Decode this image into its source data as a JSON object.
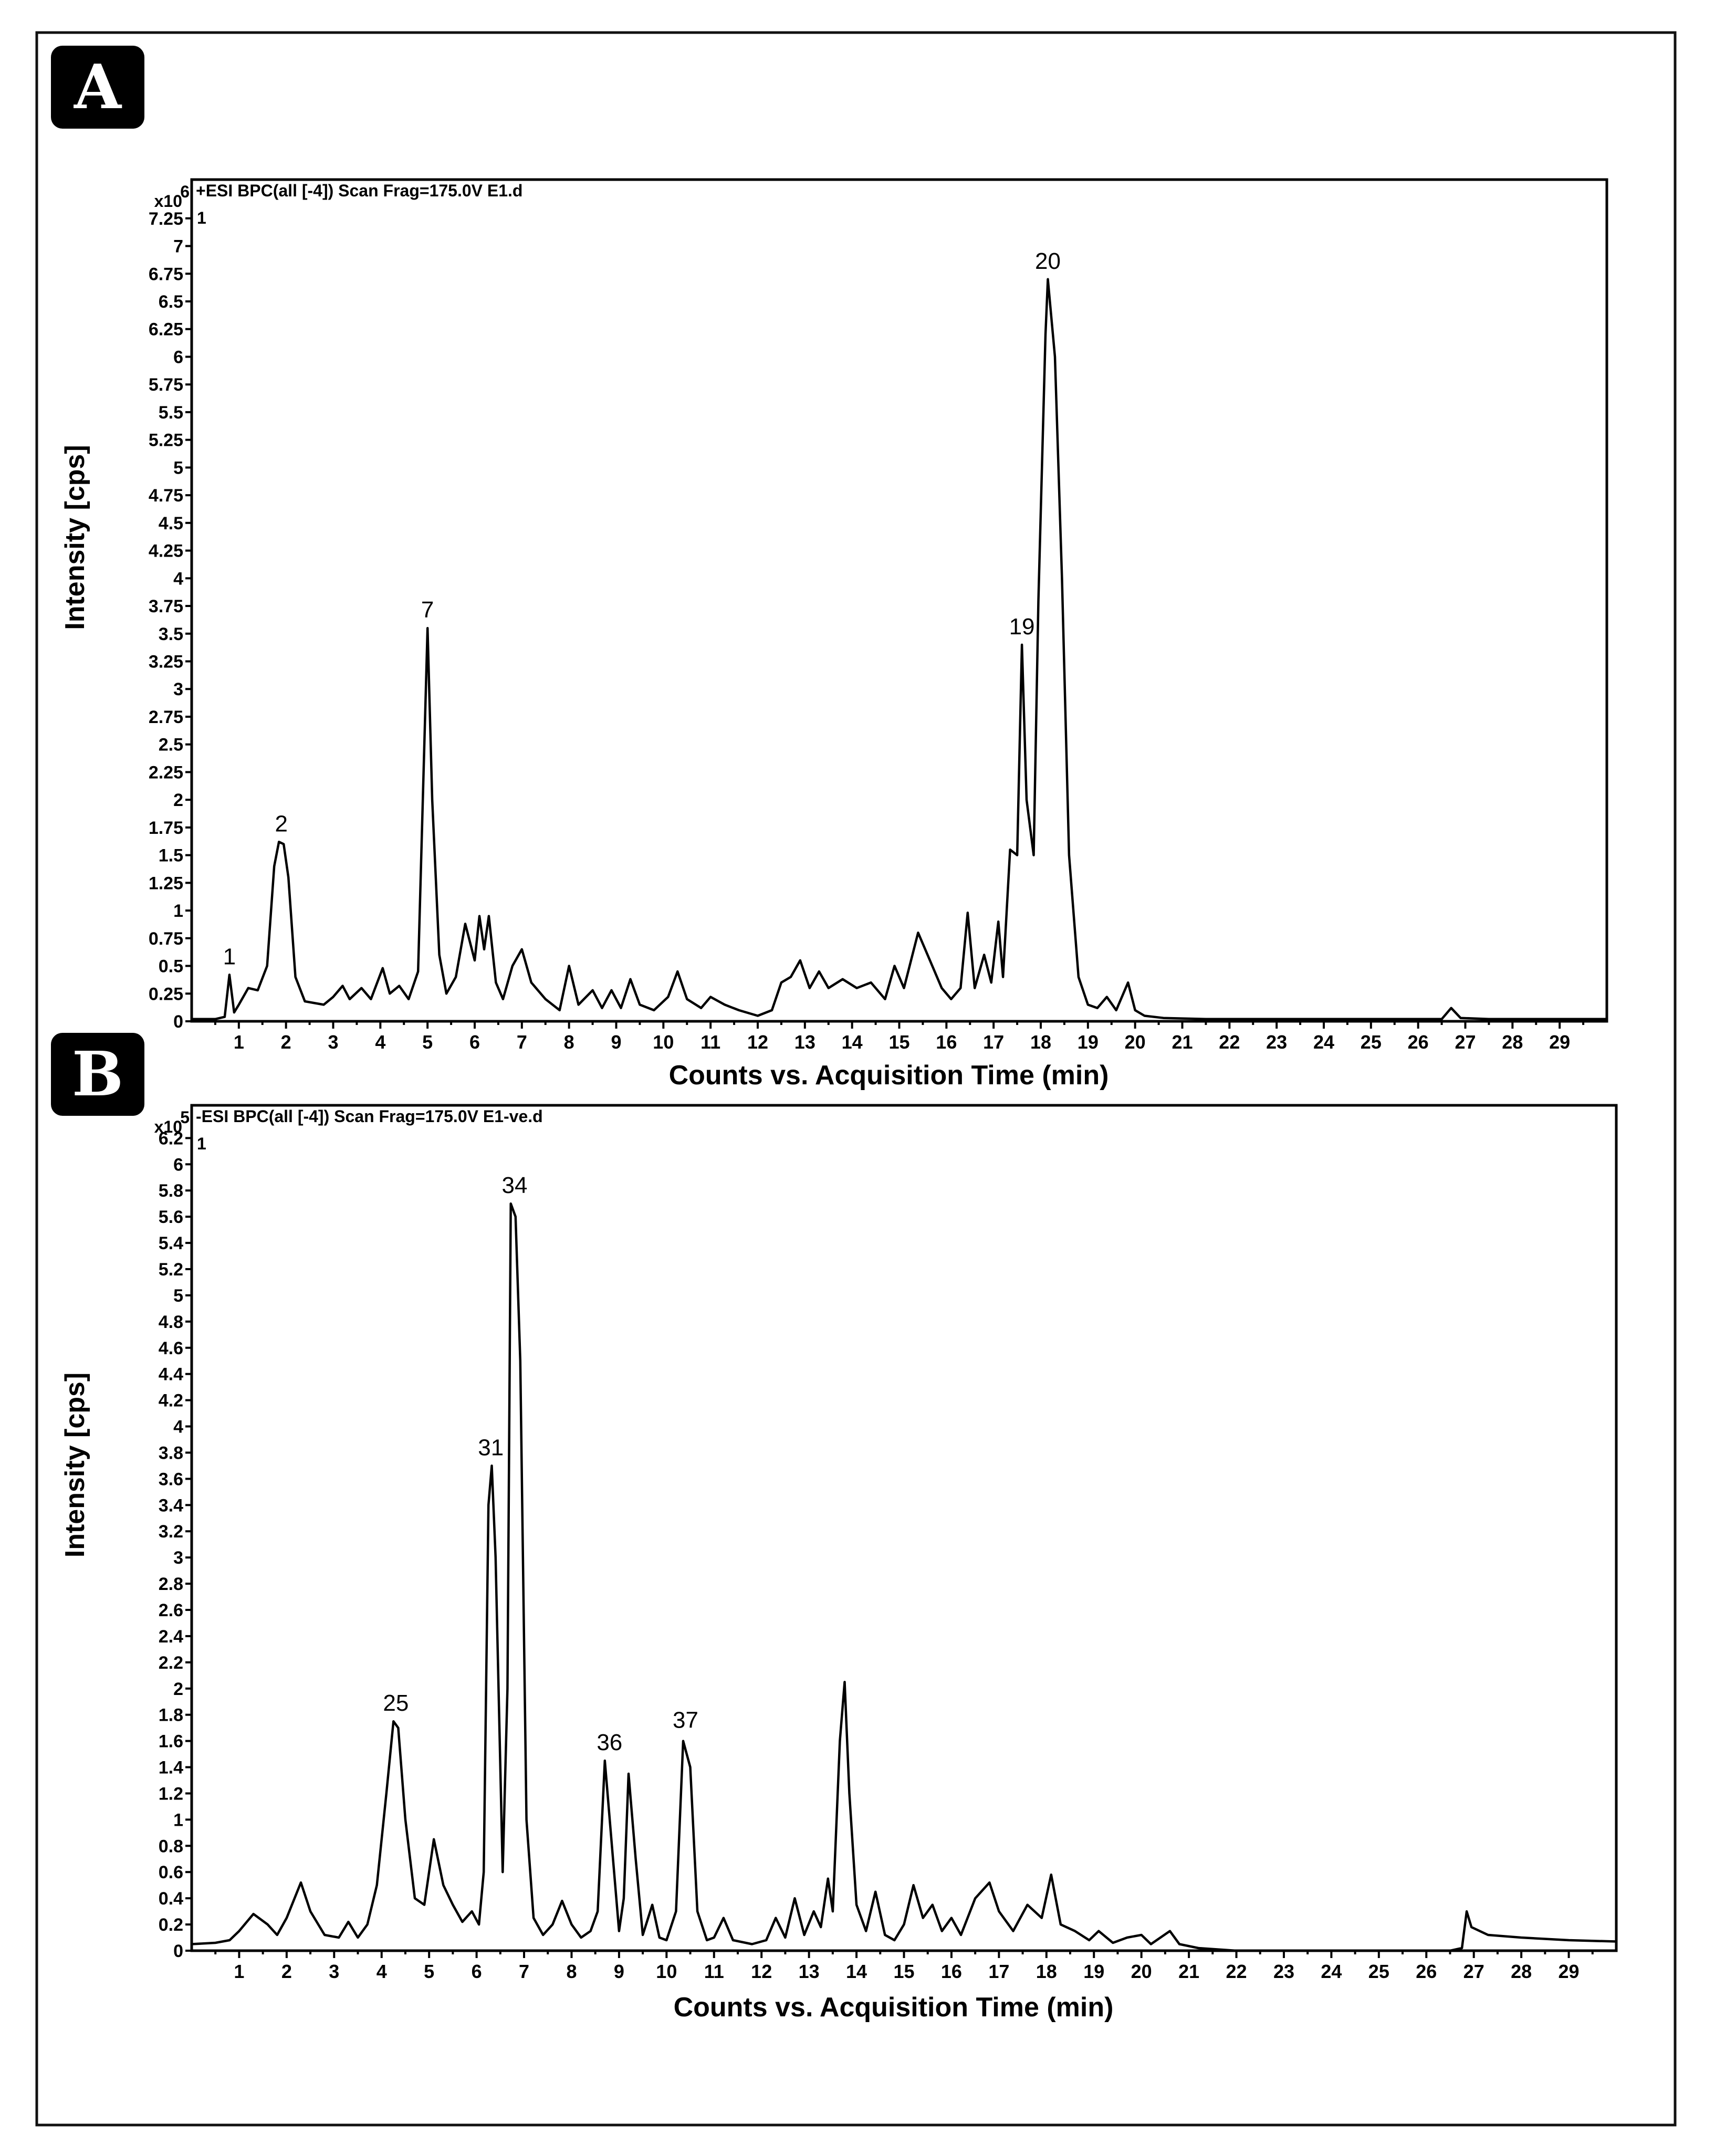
{
  "chart_data": [
    {
      "type": "line",
      "panel": "A",
      "header": "+ESI BPC(all [-4]) Scan Frag=175.0V E1.d",
      "multiplier_label": "x10",
      "multiplier_exp": "6",
      "corner_mark": "1",
      "ylabel": "Intensity [cps]",
      "xlabel": "Counts vs. Acquisition Time (min)",
      "xlim": [
        0.0,
        30.0
      ],
      "ylim": [
        0,
        7.6
      ],
      "xticks": [
        1,
        2,
        3,
        4,
        5,
        6,
        7,
        8,
        9,
        10,
        11,
        12,
        13,
        14,
        15,
        16,
        17,
        18,
        19,
        20,
        21,
        22,
        23,
        24,
        25,
        26,
        27,
        28,
        29
      ],
      "xtick_labels": [
        "1",
        "2",
        "3",
        "4",
        "5",
        "6",
        "7",
        "8",
        "9",
        "10",
        "11",
        "12",
        "13",
        "14",
        "15",
        "16",
        "17",
        "18",
        "19",
        "20",
        "21",
        "22",
        "23",
        "24",
        "25",
        "26",
        "27",
        "28",
        "29"
      ],
      "yticks": [
        0,
        0.25,
        0.5,
        0.75,
        1,
        1.25,
        1.5,
        1.75,
        2,
        2.25,
        2.5,
        2.75,
        3,
        3.25,
        3.5,
        3.75,
        4,
        4.25,
        4.5,
        4.75,
        5,
        5.25,
        5.5,
        5.75,
        6,
        6.25,
        6.5,
        6.75,
        7,
        7.25
      ],
      "ytick_labels": [
        "0",
        "0.25",
        "0.5",
        "0.75",
        "1",
        "1.25",
        "1.5",
        "1.75",
        "2",
        "2.25",
        "2.5",
        "2.75",
        "3",
        "3.25",
        "3.5",
        "3.75",
        "4",
        "4.25",
        "4.5",
        "4.75",
        "5",
        "5.25",
        "5.5",
        "5.75",
        "6",
        "6.25",
        "6.5",
        "6.75",
        "7",
        "7.25"
      ],
      "peaks": [
        {
          "label": "1",
          "x": 0.8,
          "y": 0.42
        },
        {
          "label": "2",
          "x": 1.9,
          "y": 1.62
        },
        {
          "label": "7",
          "x": 5.0,
          "y": 3.55
        },
        {
          "label": "19",
          "x": 17.6,
          "y": 3.4
        },
        {
          "label": "20",
          "x": 18.15,
          "y": 6.7
        }
      ],
      "trace": [
        [
          0.0,
          0.02
        ],
        [
          0.5,
          0.02
        ],
        [
          0.7,
          0.04
        ],
        [
          0.8,
          0.42
        ],
        [
          0.9,
          0.08
        ],
        [
          1.0,
          0.15
        ],
        [
          1.2,
          0.3
        ],
        [
          1.4,
          0.28
        ],
        [
          1.6,
          0.5
        ],
        [
          1.75,
          1.4
        ],
        [
          1.85,
          1.62
        ],
        [
          1.95,
          1.6
        ],
        [
          2.05,
          1.3
        ],
        [
          2.2,
          0.4
        ],
        [
          2.4,
          0.18
        ],
        [
          2.8,
          0.15
        ],
        [
          3.0,
          0.22
        ],
        [
          3.2,
          0.32
        ],
        [
          3.35,
          0.2
        ],
        [
          3.6,
          0.3
        ],
        [
          3.8,
          0.2
        ],
        [
          4.05,
          0.48
        ],
        [
          4.2,
          0.25
        ],
        [
          4.4,
          0.32
        ],
        [
          4.6,
          0.2
        ],
        [
          4.8,
          0.45
        ],
        [
          4.9,
          2.0
        ],
        [
          5.0,
          3.55
        ],
        [
          5.1,
          2.0
        ],
        [
          5.25,
          0.6
        ],
        [
          5.4,
          0.25
        ],
        [
          5.6,
          0.4
        ],
        [
          5.8,
          0.88
        ],
        [
          6.0,
          0.55
        ],
        [
          6.1,
          0.95
        ],
        [
          6.2,
          0.65
        ],
        [
          6.3,
          0.95
        ],
        [
          6.45,
          0.35
        ],
        [
          6.6,
          0.2
        ],
        [
          6.8,
          0.5
        ],
        [
          7.0,
          0.65
        ],
        [
          7.2,
          0.35
        ],
        [
          7.5,
          0.2
        ],
        [
          7.8,
          0.1
        ],
        [
          8.0,
          0.5
        ],
        [
          8.2,
          0.15
        ],
        [
          8.5,
          0.28
        ],
        [
          8.7,
          0.12
        ],
        [
          8.9,
          0.28
        ],
        [
          9.1,
          0.12
        ],
        [
          9.3,
          0.38
        ],
        [
          9.5,
          0.15
        ],
        [
          9.8,
          0.1
        ],
        [
          10.1,
          0.22
        ],
        [
          10.3,
          0.45
        ],
        [
          10.5,
          0.2
        ],
        [
          10.8,
          0.12
        ],
        [
          11.0,
          0.22
        ],
        [
          11.3,
          0.15
        ],
        [
          11.6,
          0.1
        ],
        [
          12.0,
          0.05
        ],
        [
          12.3,
          0.1
        ],
        [
          12.5,
          0.35
        ],
        [
          12.7,
          0.4
        ],
        [
          12.9,
          0.55
        ],
        [
          13.1,
          0.3
        ],
        [
          13.3,
          0.45
        ],
        [
          13.5,
          0.3
        ],
        [
          13.8,
          0.38
        ],
        [
          14.1,
          0.3
        ],
        [
          14.4,
          0.35
        ],
        [
          14.7,
          0.2
        ],
        [
          14.9,
          0.5
        ],
        [
          15.1,
          0.3
        ],
        [
          15.4,
          0.8
        ],
        [
          15.6,
          0.6
        ],
        [
          15.9,
          0.3
        ],
        [
          16.1,
          0.2
        ],
        [
          16.3,
          0.3
        ],
        [
          16.45,
          0.98
        ],
        [
          16.6,
          0.3
        ],
        [
          16.8,
          0.6
        ],
        [
          16.95,
          0.35
        ],
        [
          17.1,
          0.9
        ],
        [
          17.2,
          0.4
        ],
        [
          17.35,
          1.55
        ],
        [
          17.5,
          1.5
        ],
        [
          17.6,
          3.4
        ],
        [
          17.7,
          2.0
        ],
        [
          17.85,
          1.5
        ],
        [
          17.95,
          3.8
        ],
        [
          18.1,
          6.2
        ],
        [
          18.15,
          6.7
        ],
        [
          18.3,
          6.0
        ],
        [
          18.45,
          4.0
        ],
        [
          18.6,
          1.5
        ],
        [
          18.8,
          0.4
        ],
        [
          19.0,
          0.15
        ],
        [
          19.2,
          0.12
        ],
        [
          19.4,
          0.22
        ],
        [
          19.6,
          0.1
        ],
        [
          19.85,
          0.35
        ],
        [
          20.0,
          0.1
        ],
        [
          20.2,
          0.05
        ],
        [
          20.6,
          0.03
        ],
        [
          21.5,
          0.02
        ],
        [
          26.5,
          0.02
        ],
        [
          26.7,
          0.12
        ],
        [
          26.9,
          0.03
        ],
        [
          27.5,
          0.02
        ],
        [
          30.0,
          0.02
        ]
      ]
    },
    {
      "type": "line",
      "panel": "B",
      "header": "-ESI BPC(all [-4]) Scan Frag=175.0V E1-ve.d",
      "multiplier_label": "x10",
      "multiplier_exp": "5",
      "corner_mark": "1",
      "ylabel": "Intensity [cps]",
      "xlabel": "Counts vs. Acquisition Time (min)",
      "xlim": [
        0.0,
        30.0
      ],
      "ylim": [
        0,
        6.45
      ],
      "xticks": [
        1,
        2,
        3,
        4,
        5,
        6,
        7,
        8,
        9,
        10,
        11,
        12,
        13,
        14,
        15,
        16,
        17,
        18,
        19,
        20,
        21,
        22,
        23,
        24,
        25,
        26,
        27,
        28,
        29
      ],
      "xtick_labels": [
        "1",
        "2",
        "3",
        "4",
        "5",
        "6",
        "7",
        "8",
        "9",
        "10",
        "11",
        "12",
        "13",
        "14",
        "15",
        "16",
        "17",
        "18",
        "19",
        "20",
        "21",
        "22",
        "23",
        "24",
        "25",
        "26",
        "27",
        "28",
        "29"
      ],
      "yticks": [
        0,
        0.2,
        0.4,
        0.6,
        0.8,
        1,
        1.2,
        1.4,
        1.6,
        1.8,
        2,
        2.2,
        2.4,
        2.6,
        2.8,
        3,
        3.2,
        3.4,
        3.6,
        3.8,
        4,
        4.2,
        4.4,
        4.6,
        4.8,
        5,
        5.2,
        5.4,
        5.6,
        5.8,
        6,
        6.2
      ],
      "ytick_labels": [
        "0",
        "0.2",
        "0.4",
        "0.6",
        "0.8",
        "1",
        "1.2",
        "1.4",
        "1.6",
        "1.8",
        "2",
        "2.2",
        "2.4",
        "2.6",
        "2.8",
        "3",
        "3.2",
        "3.4",
        "3.6",
        "3.8",
        "4",
        "4.2",
        "4.4",
        "4.6",
        "4.8",
        "5",
        "5.2",
        "5.4",
        "5.6",
        "5.8",
        "6",
        "6.2"
      ],
      "peaks": [
        {
          "label": "25",
          "x": 4.3,
          "y": 1.75
        },
        {
          "label": "31",
          "x": 6.3,
          "y": 3.7
        },
        {
          "label": "34",
          "x": 6.8,
          "y": 5.7
        },
        {
          "label": "36",
          "x": 8.8,
          "y": 1.45
        },
        {
          "label": "37",
          "x": 10.4,
          "y": 1.62
        }
      ],
      "trace": [
        [
          0.0,
          0.05
        ],
        [
          0.5,
          0.06
        ],
        [
          0.8,
          0.08
        ],
        [
          1.0,
          0.15
        ],
        [
          1.3,
          0.28
        ],
        [
          1.6,
          0.2
        ],
        [
          1.8,
          0.12
        ],
        [
          2.0,
          0.25
        ],
        [
          2.3,
          0.52
        ],
        [
          2.5,
          0.3
        ],
        [
          2.8,
          0.12
        ],
        [
          3.1,
          0.1
        ],
        [
          3.3,
          0.22
        ],
        [
          3.5,
          0.1
        ],
        [
          3.7,
          0.2
        ],
        [
          3.9,
          0.5
        ],
        [
          4.1,
          1.2
        ],
        [
          4.25,
          1.75
        ],
        [
          4.35,
          1.7
        ],
        [
          4.5,
          1.0
        ],
        [
          4.7,
          0.4
        ],
        [
          4.9,
          0.35
        ],
        [
          5.1,
          0.85
        ],
        [
          5.3,
          0.5
        ],
        [
          5.5,
          0.35
        ],
        [
          5.7,
          0.22
        ],
        [
          5.9,
          0.3
        ],
        [
          6.05,
          0.2
        ],
        [
          6.15,
          0.6
        ],
        [
          6.25,
          3.4
        ],
        [
          6.32,
          3.7
        ],
        [
          6.4,
          3.0
        ],
        [
          6.55,
          0.6
        ],
        [
          6.65,
          2.0
        ],
        [
          6.72,
          5.7
        ],
        [
          6.82,
          5.6
        ],
        [
          6.92,
          4.5
        ],
        [
          7.05,
          1.0
        ],
        [
          7.2,
          0.25
        ],
        [
          7.4,
          0.12
        ],
        [
          7.6,
          0.2
        ],
        [
          7.8,
          0.38
        ],
        [
          8.0,
          0.2
        ],
        [
          8.2,
          0.1
        ],
        [
          8.4,
          0.15
        ],
        [
          8.55,
          0.3
        ],
        [
          8.7,
          1.45
        ],
        [
          8.85,
          0.8
        ],
        [
          9.0,
          0.15
        ],
        [
          9.1,
          0.4
        ],
        [
          9.2,
          1.35
        ],
        [
          9.35,
          0.7
        ],
        [
          9.5,
          0.12
        ],
        [
          9.7,
          0.35
        ],
        [
          9.85,
          0.1
        ],
        [
          10.0,
          0.08
        ],
        [
          10.2,
          0.3
        ],
        [
          10.35,
          1.6
        ],
        [
          10.5,
          1.4
        ],
        [
          10.65,
          0.3
        ],
        [
          10.85,
          0.08
        ],
        [
          11.0,
          0.1
        ],
        [
          11.2,
          0.25
        ],
        [
          11.4,
          0.08
        ],
        [
          11.8,
          0.05
        ],
        [
          12.1,
          0.08
        ],
        [
          12.3,
          0.25
        ],
        [
          12.5,
          0.1
        ],
        [
          12.7,
          0.4
        ],
        [
          12.9,
          0.12
        ],
        [
          13.1,
          0.3
        ],
        [
          13.25,
          0.18
        ],
        [
          13.4,
          0.55
        ],
        [
          13.5,
          0.3
        ],
        [
          13.65,
          1.6
        ],
        [
          13.75,
          2.05
        ],
        [
          13.85,
          1.2
        ],
        [
          14.0,
          0.35
        ],
        [
          14.2,
          0.15
        ],
        [
          14.4,
          0.45
        ],
        [
          14.6,
          0.12
        ],
        [
          14.8,
          0.08
        ],
        [
          15.0,
          0.2
        ],
        [
          15.2,
          0.5
        ],
        [
          15.4,
          0.25
        ],
        [
          15.6,
          0.35
        ],
        [
          15.8,
          0.15
        ],
        [
          16.0,
          0.25
        ],
        [
          16.2,
          0.12
        ],
        [
          16.5,
          0.4
        ],
        [
          16.8,
          0.52
        ],
        [
          17.0,
          0.3
        ],
        [
          17.3,
          0.15
        ],
        [
          17.6,
          0.35
        ],
        [
          17.9,
          0.25
        ],
        [
          18.1,
          0.58
        ],
        [
          18.3,
          0.2
        ],
        [
          18.6,
          0.15
        ],
        [
          18.9,
          0.08
        ],
        [
          19.1,
          0.15
        ],
        [
          19.4,
          0.06
        ],
        [
          19.7,
          0.1
        ],
        [
          20.0,
          0.12
        ],
        [
          20.2,
          0.05
        ],
        [
          20.6,
          0.15
        ],
        [
          20.8,
          0.05
        ],
        [
          21.2,
          0.02
        ],
        [
          22.0,
          0.0
        ],
        [
          26.5,
          0.0
        ],
        [
          26.75,
          0.02
        ],
        [
          26.85,
          0.3
        ],
        [
          26.95,
          0.18
        ],
        [
          27.3,
          0.12
        ],
        [
          28.0,
          0.1
        ],
        [
          29.0,
          0.08
        ],
        [
          30.0,
          0.07
        ]
      ]
    }
  ]
}
